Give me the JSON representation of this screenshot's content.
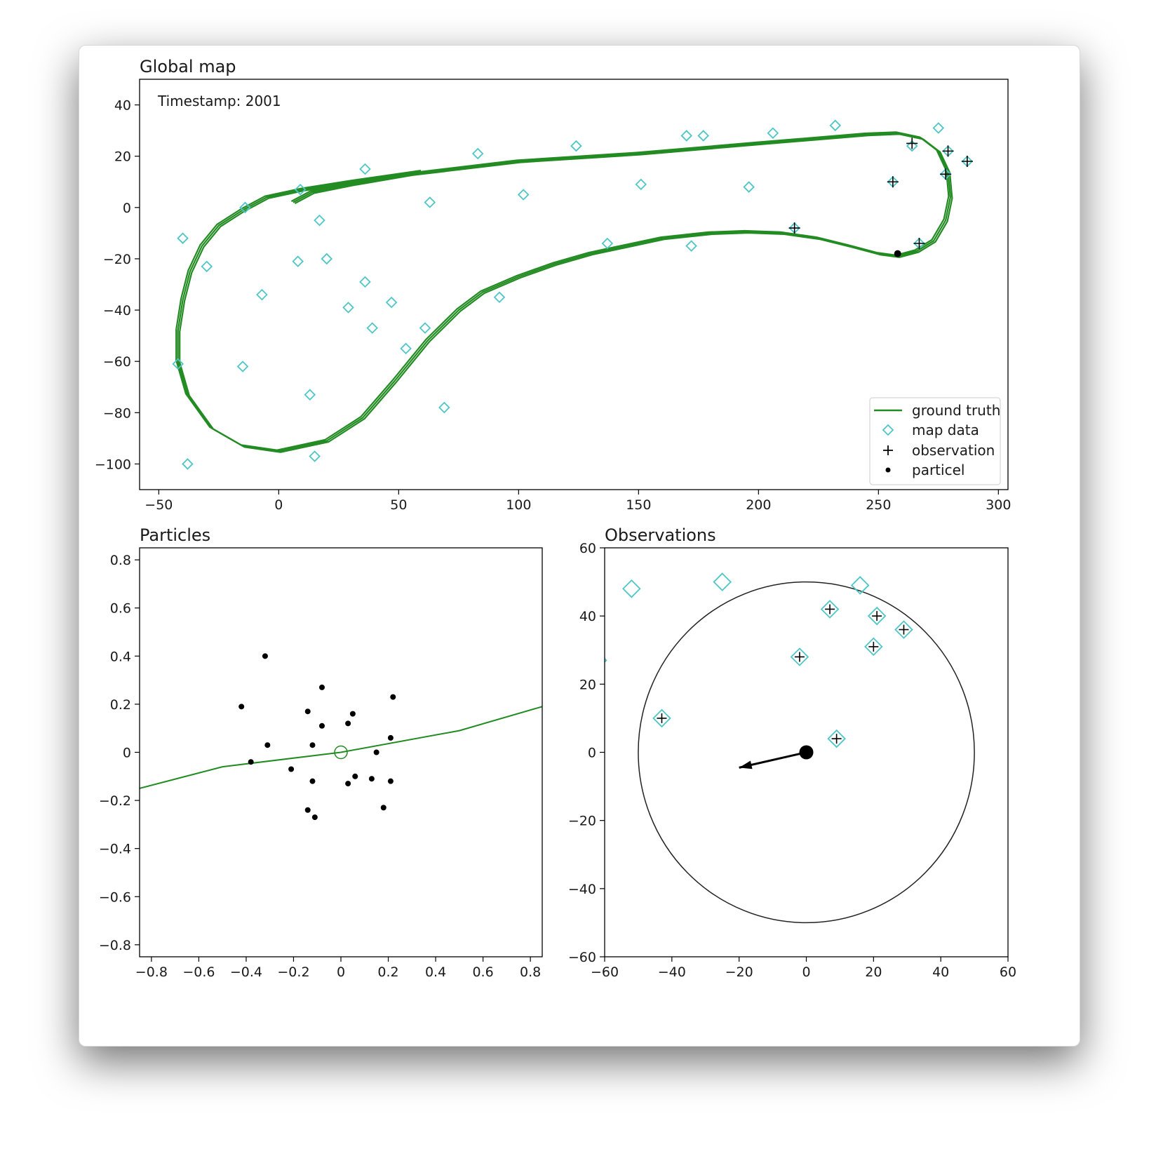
{
  "chart_data": [
    {
      "type": "scatter",
      "title": "Global map",
      "annotation": "Timestamp: 2001",
      "xlim": [
        -58,
        304
      ],
      "ylim": [
        -110,
        50
      ],
      "xticks": [
        -50,
        0,
        50,
        100,
        150,
        200,
        250,
        300
      ],
      "yticks": [
        -100,
        -80,
        -60,
        -40,
        -20,
        0,
        20,
        40
      ],
      "grid": false,
      "legend_position": "bottom-right",
      "legend": [
        {
          "label": "ground truth",
          "marker": "line"
        },
        {
          "label": "map data",
          "marker": "diamond"
        },
        {
          "label": "observation",
          "marker": "plus"
        },
        {
          "label": "particel",
          "marker": "dot"
        }
      ],
      "colors": {
        "ground_truth": "#228b22",
        "map_data": "#4fc6c6",
        "observation": "#000000",
        "particle": "#000000"
      },
      "ground_truth_path": [
        [
          6,
          2
        ],
        [
          14,
          6
        ],
        [
          30,
          9
        ],
        [
          55,
          13
        ],
        [
          100,
          18
        ],
        [
          150,
          21
        ],
        [
          200,
          25
        ],
        [
          245,
          28.5
        ],
        [
          258,
          29
        ],
        [
          268,
          27
        ],
        [
          275,
          22
        ],
        [
          279,
          14
        ],
        [
          280,
          4
        ],
        [
          278,
          -5
        ],
        [
          273,
          -13
        ],
        [
          266,
          -17
        ],
        [
          258,
          -19
        ],
        [
          250,
          -18
        ],
        [
          238,
          -15
        ],
        [
          225,
          -12
        ],
        [
          210,
          -10
        ],
        [
          195,
          -9.5
        ],
        [
          180,
          -10
        ],
        [
          160,
          -12
        ],
        [
          130,
          -18
        ],
        [
          115,
          -22
        ],
        [
          100,
          -27
        ],
        [
          85,
          -33
        ],
        [
          75,
          -40
        ],
        [
          62,
          -52
        ],
        [
          48,
          -68
        ],
        [
          35,
          -82
        ],
        [
          20,
          -91
        ],
        [
          0,
          -95
        ],
        [
          -15,
          -93
        ],
        [
          -28,
          -86
        ],
        [
          -38,
          -73
        ],
        [
          -42,
          -60
        ],
        [
          -42,
          -48
        ],
        [
          -40,
          -36
        ],
        [
          -37,
          -25
        ],
        [
          -32,
          -15
        ],
        [
          -25,
          -7
        ],
        [
          -15,
          -1
        ],
        [
          -5,
          4
        ],
        [
          10,
          7
        ],
        [
          30,
          10
        ],
        [
          60,
          14
        ]
      ],
      "map_data": [
        [
          -40,
          -12
        ],
        [
          -30,
          -23
        ],
        [
          -14,
          0
        ],
        [
          9,
          7
        ],
        [
          -7,
          -34
        ],
        [
          8,
          -21
        ],
        [
          17,
          -5
        ],
        [
          20,
          -20
        ],
        [
          -15,
          -62
        ],
        [
          -42,
          -61
        ],
        [
          -38,
          -100
        ],
        [
          13,
          -73
        ],
        [
          15,
          -97
        ],
        [
          29,
          -39
        ],
        [
          36,
          15
        ],
        [
          36,
          -29
        ],
        [
          39,
          -47
        ],
        [
          47,
          -37
        ],
        [
          53,
          -55
        ],
        [
          61,
          -47
        ],
        [
          63,
          2
        ],
        [
          69,
          -78
        ],
        [
          83,
          21
        ],
        [
          92,
          -35
        ],
        [
          102,
          5
        ],
        [
          124,
          24
        ],
        [
          137,
          -14
        ],
        [
          151,
          9
        ],
        [
          170,
          28
        ],
        [
          172,
          -15
        ],
        [
          177,
          28
        ],
        [
          196,
          8
        ],
        [
          206,
          29
        ],
        [
          215,
          -8
        ],
        [
          232,
          32
        ],
        [
          256,
          10
        ],
        [
          264,
          24
        ],
        [
          267,
          -14
        ],
        [
          275,
          31
        ],
        [
          278,
          13
        ],
        [
          279,
          22
        ],
        [
          287,
          18
        ]
      ],
      "observations": [
        [
          215,
          -8
        ],
        [
          256,
          10
        ],
        [
          264,
          25
        ],
        [
          267,
          -14
        ],
        [
          278,
          13
        ],
        [
          279,
          22
        ],
        [
          287,
          18
        ]
      ],
      "particle": [
        258,
        -18
      ]
    },
    {
      "type": "scatter",
      "title": "Particles",
      "xlim": [
        -0.85,
        0.85
      ],
      "ylim": [
        -0.85,
        0.85
      ],
      "xticks": [
        -0.8,
        -0.6,
        -0.4,
        -0.2,
        0.0,
        0.2,
        0.4,
        0.6,
        0.8
      ],
      "yticks": [
        -0.8,
        -0.6,
        -0.4,
        -0.2,
        0.0,
        0.2,
        0.4,
        0.6,
        0.8
      ],
      "grid": false,
      "ground_truth_line": [
        [
          -0.85,
          -0.15
        ],
        [
          -0.5,
          -0.06
        ],
        [
          0.0,
          0.0
        ],
        [
          0.5,
          0.09
        ],
        [
          0.85,
          0.19
        ]
      ],
      "center_marker": [
        0.0,
        0.0
      ],
      "particles": [
        [
          -0.32,
          0.4
        ],
        [
          -0.42,
          0.19
        ],
        [
          -0.08,
          0.27
        ],
        [
          0.22,
          0.23
        ],
        [
          -0.14,
          0.17
        ],
        [
          0.05,
          0.16
        ],
        [
          -0.08,
          0.11
        ],
        [
          0.03,
          0.12
        ],
        [
          -0.12,
          0.03
        ],
        [
          -0.31,
          0.03
        ],
        [
          0.21,
          0.06
        ],
        [
          0.15,
          0.0
        ],
        [
          -0.38,
          -0.04
        ],
        [
          -0.21,
          -0.07
        ],
        [
          0.06,
          -0.1
        ],
        [
          -0.12,
          -0.12
        ],
        [
          0.03,
          -0.13
        ],
        [
          0.13,
          -0.11
        ],
        [
          0.21,
          -0.12
        ],
        [
          -0.14,
          -0.24
        ],
        [
          -0.11,
          -0.27
        ],
        [
          0.18,
          -0.23
        ]
      ]
    },
    {
      "type": "scatter",
      "title": "Observations",
      "xlim": [
        -60,
        60
      ],
      "ylim": [
        -60,
        60
      ],
      "xticks": [
        -60,
        -40,
        -20,
        0,
        20,
        40,
        60
      ],
      "yticks": [
        -60,
        -40,
        -20,
        0,
        20,
        40,
        60
      ],
      "grid": false,
      "range_circle": {
        "center": [
          0,
          0
        ],
        "radius": 50
      },
      "heading_arrow": {
        "from": [
          0,
          0
        ],
        "to": [
          -20,
          -4.5
        ]
      },
      "map_data": [
        [
          -52,
          48
        ],
        [
          -25,
          50
        ],
        [
          16,
          49
        ],
        [
          -62,
          27
        ],
        [
          7,
          42
        ],
        [
          21,
          40
        ],
        [
          29,
          36
        ],
        [
          20,
          31
        ],
        [
          -2,
          28
        ],
        [
          -43,
          10
        ],
        [
          9,
          4
        ]
      ],
      "observations": [
        [
          7,
          42
        ],
        [
          21,
          40
        ],
        [
          29,
          36
        ],
        [
          20,
          31
        ],
        [
          -2,
          28
        ],
        [
          -43,
          10
        ],
        [
          9,
          4
        ]
      ]
    }
  ]
}
